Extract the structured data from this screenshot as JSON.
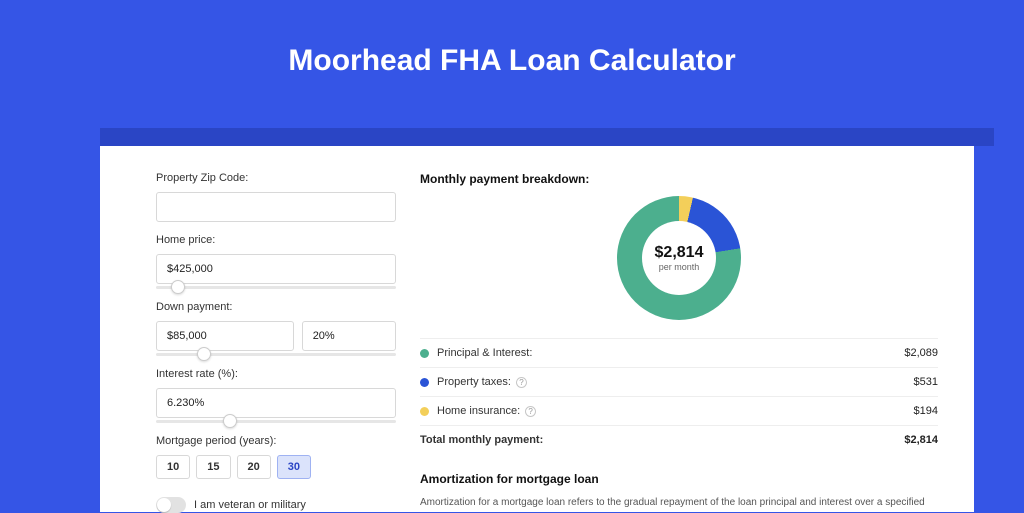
{
  "page": {
    "title": "Moorhead FHA Loan Calculator",
    "background_color": "#3555e6",
    "shadow_color": "#2a45c5",
    "card_color": "#ffffff"
  },
  "form": {
    "zip": {
      "label": "Property Zip Code:",
      "value": ""
    },
    "home_price": {
      "label": "Home price:",
      "value": "$425,000",
      "slider_percent": 9
    },
    "down_payment": {
      "label": "Down payment:",
      "amount_value": "$85,000",
      "percent_value": "20%",
      "slider_percent": 20
    },
    "interest_rate": {
      "label": "Interest rate (%):",
      "value": "6.230%",
      "slider_percent": 31
    },
    "mortgage_period": {
      "label": "Mortgage period (years):",
      "options": [
        "10",
        "15",
        "20",
        "30"
      ],
      "selected": "30"
    },
    "veteran": {
      "label": "I am veteran or military",
      "checked": false
    }
  },
  "breakdown": {
    "title": "Monthly payment breakdown:",
    "donut": {
      "amount": "$2,814",
      "subtitle": "per month",
      "segments": [
        {
          "label": "Principal & Interest:",
          "value": "$2,089",
          "color": "#4caf8e",
          "degrees": 267,
          "has_info": false
        },
        {
          "label": "Property taxes:",
          "value": "$531",
          "color": "#2a54d6",
          "degrees": 68,
          "has_info": true
        },
        {
          "label": "Home insurance:",
          "value": "$194",
          "color": "#f3cf5a",
          "degrees": 25,
          "has_info": true
        }
      ]
    },
    "total": {
      "label": "Total monthly payment:",
      "value": "$2,814"
    }
  },
  "amortization": {
    "title": "Amortization for mortgage loan",
    "text": "Amortization for a mortgage loan refers to the gradual repayment of the loan principal and interest over a specified"
  }
}
